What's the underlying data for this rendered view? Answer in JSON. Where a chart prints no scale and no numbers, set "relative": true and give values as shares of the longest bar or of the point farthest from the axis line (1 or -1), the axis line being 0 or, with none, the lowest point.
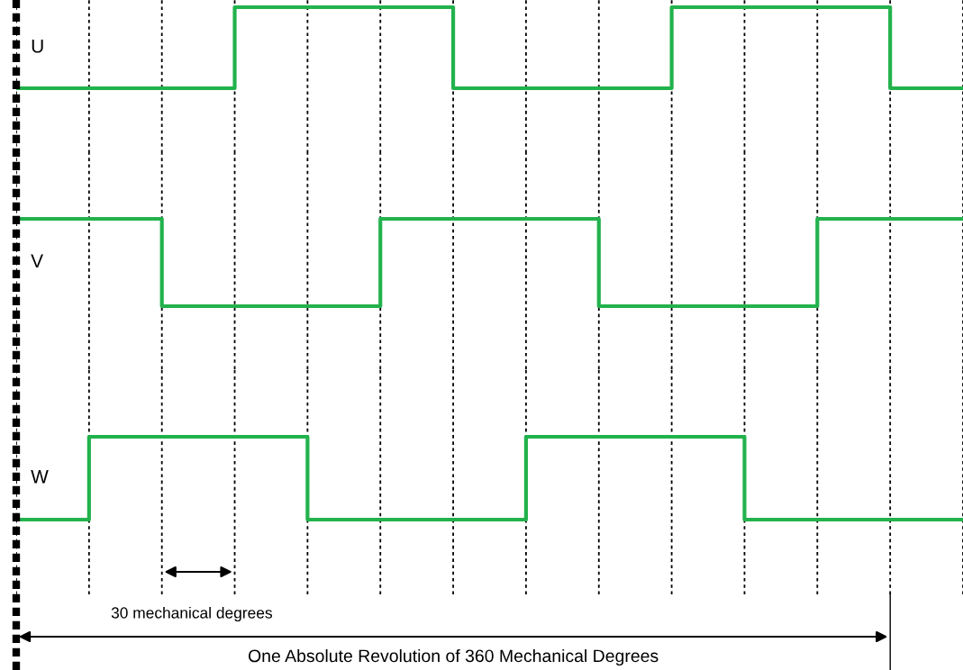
{
  "chart_data": [
    {
      "type": "step",
      "relative": true,
      "categories": [
        null,
        null,
        null,
        null,
        null,
        null,
        null,
        null,
        null,
        null,
        null,
        null,
        null,
        null
      ],
      "grid": "x",
      "series": [
        {
          "name": "U",
          "color": "#22b24c",
          "values": [
            0,
            0,
            0,
            1,
            1,
            1,
            0,
            0,
            0,
            1,
            1,
            1,
            0,
            0
          ]
        }
      ]
    },
    {
      "type": "step",
      "relative": true,
      "categories": [
        null,
        null,
        null,
        null,
        null,
        null,
        null,
        null,
        null,
        null,
        null,
        null,
        null,
        null
      ],
      "grid": "x",
      "series": [
        {
          "name": "V",
          "color": "#22b24c",
          "values": [
            1,
            1,
            0,
            0,
            0,
            1,
            1,
            1,
            0,
            0,
            0,
            1,
            1,
            1
          ]
        }
      ]
    },
    {
      "type": "step",
      "relative": true,
      "categories": [
        null,
        null,
        null,
        null,
        null,
        null,
        null,
        null,
        null,
        null,
        null,
        null,
        null,
        null
      ],
      "grid": "x",
      "series": [
        {
          "name": "W",
          "color": "#22b24c",
          "values": [
            0,
            1,
            1,
            1,
            0,
            0,
            0,
            1,
            1,
            1,
            0,
            0,
            0,
            0
          ]
        }
      ],
      "annotations": [
        "30 mechanical degrees",
        "One Absolute Revolution of 360 Mechanical Degrees"
      ]
    }
  ]
}
